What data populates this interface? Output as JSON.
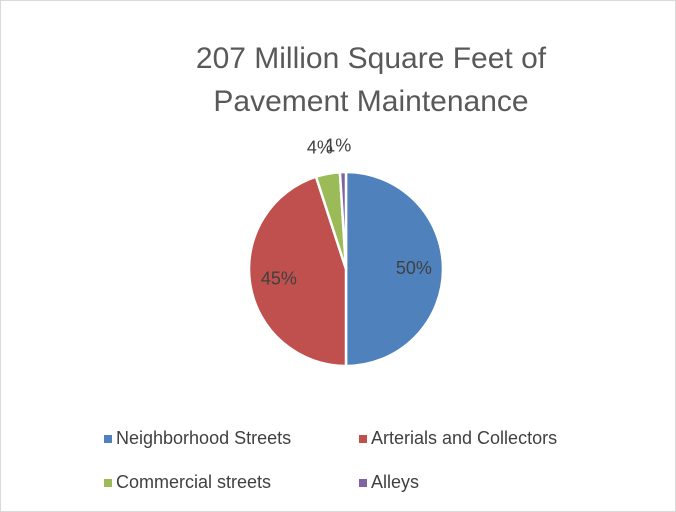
{
  "chart_data": {
    "type": "pie",
    "title": "207 Million Square Feet of Pavement Maintenance",
    "categories": [
      "Neighborhood Streets",
      "Arterials and Collectors",
      "Commercial streets",
      "Alleys"
    ],
    "values": [
      50,
      45,
      4,
      1
    ],
    "value_labels": [
      "50%",
      "45%",
      "4%",
      "1%"
    ],
    "colors": [
      "#4f81bd",
      "#c0504d",
      "#9bbb59",
      "#8064a2"
    ],
    "legend": "bottom"
  }
}
